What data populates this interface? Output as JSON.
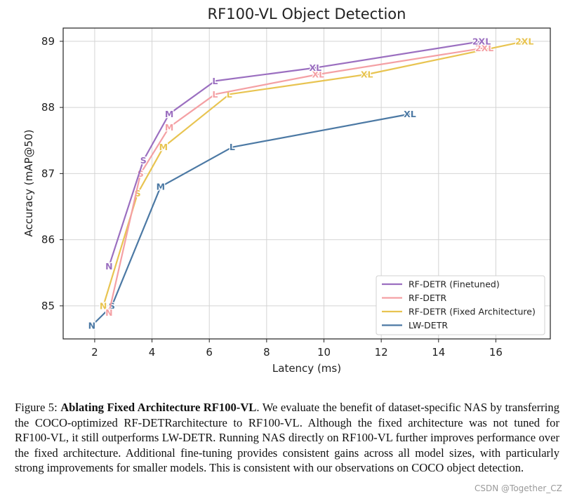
{
  "chart_data": {
    "type": "line",
    "title": "RF100-VL Object Detection",
    "xlabel": "Latency (ms)",
    "ylabel": "Accuracy (mAP@50)",
    "xlim": [
      0.9,
      17.9
    ],
    "ylim": [
      84.5,
      89.2
    ],
    "xticks": [
      2,
      4,
      6,
      8,
      10,
      12,
      14,
      16
    ],
    "yticks": [
      85,
      86,
      87,
      88,
      89
    ],
    "grid": true,
    "legend_position": "lower-right",
    "series": [
      {
        "name": "RF-DETR (Finetuned)",
        "color": "#9b6fc0",
        "points": [
          {
            "x": 2.5,
            "y": 85.6,
            "label": "N"
          },
          {
            "x": 3.7,
            "y": 87.2,
            "label": "S"
          },
          {
            "x": 4.6,
            "y": 87.9,
            "label": "M"
          },
          {
            "x": 6.2,
            "y": 88.4,
            "label": "L"
          },
          {
            "x": 9.7,
            "y": 88.6,
            "label": "XL"
          },
          {
            "x": 15.5,
            "y": 89.0,
            "label": "2XL"
          }
        ]
      },
      {
        "name": "RF-DETR",
        "color": "#f4a0a4",
        "points": [
          {
            "x": 2.5,
            "y": 84.9,
            "label": "N"
          },
          {
            "x": 3.6,
            "y": 87.0,
            "label": "S"
          },
          {
            "x": 4.6,
            "y": 87.7,
            "label": "M"
          },
          {
            "x": 6.2,
            "y": 88.2,
            "label": "L"
          },
          {
            "x": 9.8,
            "y": 88.5,
            "label": "XL"
          },
          {
            "x": 15.6,
            "y": 88.9,
            "label": "2XL"
          }
        ]
      },
      {
        "name": "RF-DETR (Fixed Architecture)",
        "color": "#e8c451",
        "points": [
          {
            "x": 2.3,
            "y": 85.0,
            "label": "N"
          },
          {
            "x": 3.5,
            "y": 86.7,
            "label": "S"
          },
          {
            "x": 4.4,
            "y": 87.4,
            "label": "M"
          },
          {
            "x": 6.7,
            "y": 88.2,
            "label": "L"
          },
          {
            "x": 11.5,
            "y": 88.5,
            "label": "XL"
          },
          {
            "x": 17.0,
            "y": 89.0,
            "label": "2XL"
          }
        ]
      },
      {
        "name": "LW-DETR",
        "color": "#4c79a4",
        "points": [
          {
            "x": 1.9,
            "y": 84.7,
            "label": "N"
          },
          {
            "x": 2.6,
            "y": 85.0,
            "label": "S"
          },
          {
            "x": 4.3,
            "y": 86.8,
            "label": "M"
          },
          {
            "x": 6.8,
            "y": 87.4,
            "label": "L"
          },
          {
            "x": 13.0,
            "y": 87.9,
            "label": "XL"
          }
        ]
      }
    ]
  },
  "caption": {
    "figure_label": "Figure 5:",
    "bold_title": "Ablating Fixed Architecture RF100-VL",
    "body": ". We evaluate the benefit of dataset-specific NAS by transferring the COCO-optimized RF-DETRarchitecture to RF100-VL. Although the fixed architecture was not tuned for RF100-VL, it still outperforms LW-DETR. Running NAS directly on RF100-VL further improves performance over the fixed architecture.  Additional fine-tuning provides consistent gains across all model sizes, with particularly strong improvements for smaller models. This is consistent with our observations on COCO object detection."
  },
  "watermark": "CSDN @Together_CZ"
}
